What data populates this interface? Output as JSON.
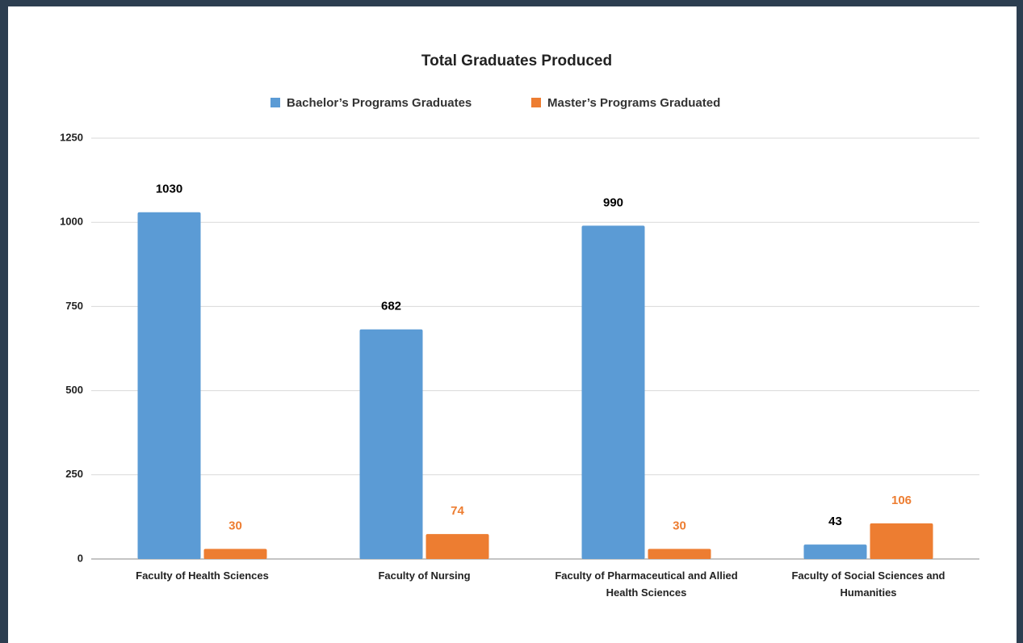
{
  "chart_data": {
    "type": "bar",
    "title": "Total Graduates Produced",
    "categories": [
      "Faculty of Health Sciences",
      "Faculty of Nursing",
      "Faculty of Pharmaceutical and Allied Health Sciences",
      "Faculty of Social Sciences and Humanities"
    ],
    "series": [
      {
        "name": "Bachelor’s Programs Graduates",
        "color": "#5b9bd5",
        "label_color": "#000000",
        "values": [
          1030,
          682,
          990,
          43
        ]
      },
      {
        "name": "Master’s Programs Graduated",
        "color": "#ed7d31",
        "label_color": "#ed7d31",
        "values": [
          30,
          74,
          30,
          106
        ]
      }
    ],
    "ylim": [
      0,
      1250
    ],
    "yticks": [
      0,
      250,
      500,
      750,
      1000,
      1250
    ],
    "grid": true,
    "legend": "top"
  }
}
